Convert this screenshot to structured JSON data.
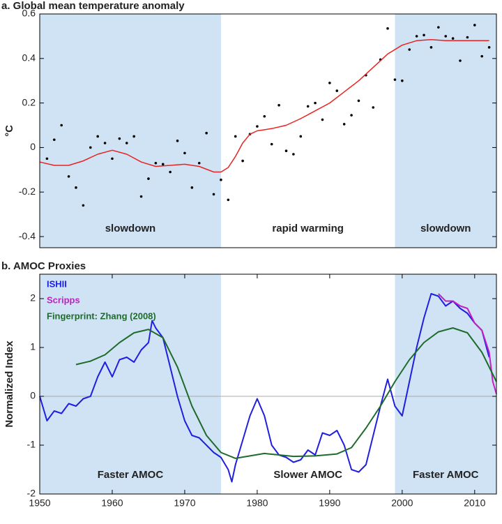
{
  "chart_data": [
    {
      "type": "line",
      "title": "a. Global mean temperature anomaly",
      "ylabel": "°C",
      "xlim": [
        1950,
        2013
      ],
      "ylim": [
        -0.45,
        0.6
      ],
      "yticks": [
        -0.4,
        -0.2,
        0,
        0.2,
        0.4,
        0.6
      ],
      "shaded_spans": [
        [
          1950,
          1975
        ],
        [
          1999,
          2013
        ]
      ],
      "shade_color": "#cfe3f5",
      "annotations": [
        "slowdown",
        "rapid warming",
        "slowdown"
      ],
      "series": [
        {
          "mode": "markers",
          "color": "#000000",
          "x": [
            1951,
            1952,
            1953,
            1954,
            1955,
            1956,
            1957,
            1958,
            1959,
            1960,
            1961,
            1962,
            1963,
            1964,
            1965,
            1966,
            1967,
            1968,
            1969,
            1970,
            1971,
            1972,
            1973,
            1974,
            1975,
            1976,
            1977,
            1978,
            1979,
            1980,
            1981,
            1982,
            1983,
            1984,
            1985,
            1986,
            1987,
            1988,
            1989,
            1990,
            1991,
            1992,
            1993,
            1994,
            1995,
            1996,
            1997,
            1998,
            1999,
            2000,
            2001,
            2002,
            2003,
            2004,
            2005,
            2006,
            2007,
            2008,
            2009,
            2010,
            2011,
            2012
          ],
          "values": [
            -0.05,
            0.035,
            0.1,
            -0.13,
            -0.18,
            -0.26,
            0.0,
            0.05,
            0.02,
            -0.05,
            0.04,
            0.02,
            0.05,
            -0.22,
            -0.14,
            -0.07,
            -0.075,
            -0.11,
            0.03,
            -0.025,
            -0.18,
            -0.07,
            0.065,
            -0.21,
            -0.145,
            -0.235,
            0.05,
            -0.06,
            0.06,
            0.095,
            0.14,
            0.015,
            0.19,
            -0.015,
            -0.03,
            0.05,
            0.185,
            0.2,
            0.125,
            0.29,
            0.255,
            0.105,
            0.145,
            0.21,
            0.325,
            0.18,
            0.395,
            0.535,
            0.305,
            0.3,
            0.44,
            0.5,
            0.505,
            0.45,
            0.54,
            0.5,
            0.49,
            0.39,
            0.495,
            0.55,
            0.41,
            0.45
          ]
        },
        {
          "mode": "line",
          "color": "#e8231f",
          "x": [
            1950,
            1952,
            1954,
            1956,
            1958,
            1960,
            1962,
            1964,
            1966,
            1968,
            1970,
            1972,
            1974,
            1975,
            1976,
            1977,
            1978,
            1979,
            1980,
            1982,
            1984,
            1986,
            1988,
            1990,
            1992,
            1994,
            1996,
            1998,
            2000,
            2002,
            2004,
            2006,
            2008,
            2010,
            2012
          ],
          "values": [
            -0.065,
            -0.08,
            -0.08,
            -0.06,
            -0.03,
            -0.012,
            -0.03,
            -0.065,
            -0.085,
            -0.08,
            -0.075,
            -0.085,
            -0.11,
            -0.11,
            -0.09,
            -0.04,
            0.02,
            0.06,
            0.075,
            0.085,
            0.1,
            0.13,
            0.165,
            0.2,
            0.25,
            0.3,
            0.36,
            0.42,
            0.46,
            0.48,
            0.485,
            0.48,
            0.48,
            0.48,
            0.48
          ]
        }
      ]
    },
    {
      "type": "line",
      "title": "b. AMOC Proxies",
      "ylabel": "Normalized Index",
      "xlim": [
        1950,
        2013
      ],
      "ylim": [
        -2.0,
        2.5
      ],
      "yticks": [
        -2,
        -1,
        0,
        1,
        2
      ],
      "xticks": [
        1950,
        1960,
        1970,
        1980,
        1990,
        2000,
        2010
      ],
      "shaded_spans": [
        [
          1950,
          1975
        ],
        [
          1999,
          2013
        ]
      ],
      "shade_color": "#cfe3f5",
      "zero_line": true,
      "legend": "upper left",
      "annotations": [
        "Faster AMOC",
        "Slower AMOC",
        "Faster AMOC"
      ],
      "series": [
        {
          "name": "ISHII",
          "mode": "line",
          "color": "#1f1fe0",
          "x": [
            1950,
            1951,
            1952,
            1953,
            1954,
            1955,
            1956,
            1957,
            1958,
            1959,
            1960,
            1961,
            1962,
            1963,
            1964,
            1965,
            1965.5,
            1966,
            1967,
            1968,
            1969,
            1970,
            1971,
            1972,
            1973,
            1974,
            1975,
            1976,
            1976.5,
            1977,
            1978,
            1979,
            1980,
            1981,
            1982,
            1983,
            1984,
            1985,
            1986,
            1987,
            1988,
            1989,
            1990,
            1991,
            1992,
            1993,
            1994,
            1995,
            1996,
            1997,
            1998,
            1999,
            2000,
            2001,
            2002,
            2003,
            2004,
            2005,
            2006,
            2007,
            2008,
            2009,
            2010,
            2011,
            2012
          ],
          "values": [
            0,
            -0.5,
            -0.3,
            -0.35,
            -0.15,
            -0.2,
            -0.05,
            0.0,
            0.4,
            0.7,
            0.4,
            0.75,
            0.8,
            0.7,
            0.95,
            1.1,
            1.55,
            1.4,
            1.2,
            0.6,
            0.0,
            -0.5,
            -0.8,
            -0.85,
            -1.0,
            -1.15,
            -1.25,
            -1.5,
            -1.75,
            -1.4,
            -0.9,
            -0.4,
            -0.05,
            -0.4,
            -1.0,
            -1.2,
            -1.25,
            -1.35,
            -1.3,
            -1.1,
            -1.2,
            -0.75,
            -0.8,
            -0.7,
            -1.0,
            -1.5,
            -1.55,
            -1.4,
            -0.8,
            -0.2,
            0.35,
            -0.2,
            -0.4,
            0.3,
            1.0,
            1.6,
            2.1,
            2.05,
            1.85,
            1.95,
            1.8,
            1.7,
            1.5,
            1.35,
            0.8
          ]
        },
        {
          "name": "Scripps",
          "mode": "line",
          "color": "#c41fc4",
          "x": [
            2005,
            2006,
            2007,
            2008,
            2009,
            2010,
            2011,
            2012,
            2012.5,
            2013
          ],
          "values": [
            2.1,
            1.95,
            1.95,
            1.85,
            1.8,
            1.5,
            1.35,
            0.9,
            0.3,
            0.05
          ]
        },
        {
          "name": "Fingerprint: Zhang (2008)",
          "mode": "line",
          "color": "#1e6b2a",
          "x": [
            1955,
            1957,
            1959,
            1961,
            1963,
            1965,
            1967,
            1969,
            1971,
            1973,
            1975,
            1977,
            1979,
            1981,
            1983,
            1985,
            1988,
            1991,
            1993,
            1995,
            1997,
            1999,
            2001,
            2003,
            2005,
            2007,
            2009,
            2011,
            2013
          ],
          "values": [
            0.65,
            0.72,
            0.85,
            1.1,
            1.3,
            1.37,
            1.2,
            0.6,
            -0.2,
            -0.8,
            -1.15,
            -1.27,
            -1.22,
            -1.17,
            -1.2,
            -1.23,
            -1.22,
            -1.18,
            -1.05,
            -0.65,
            -0.2,
            0.3,
            0.75,
            1.1,
            1.32,
            1.4,
            1.3,
            0.9,
            0.3
          ]
        }
      ]
    }
  ]
}
